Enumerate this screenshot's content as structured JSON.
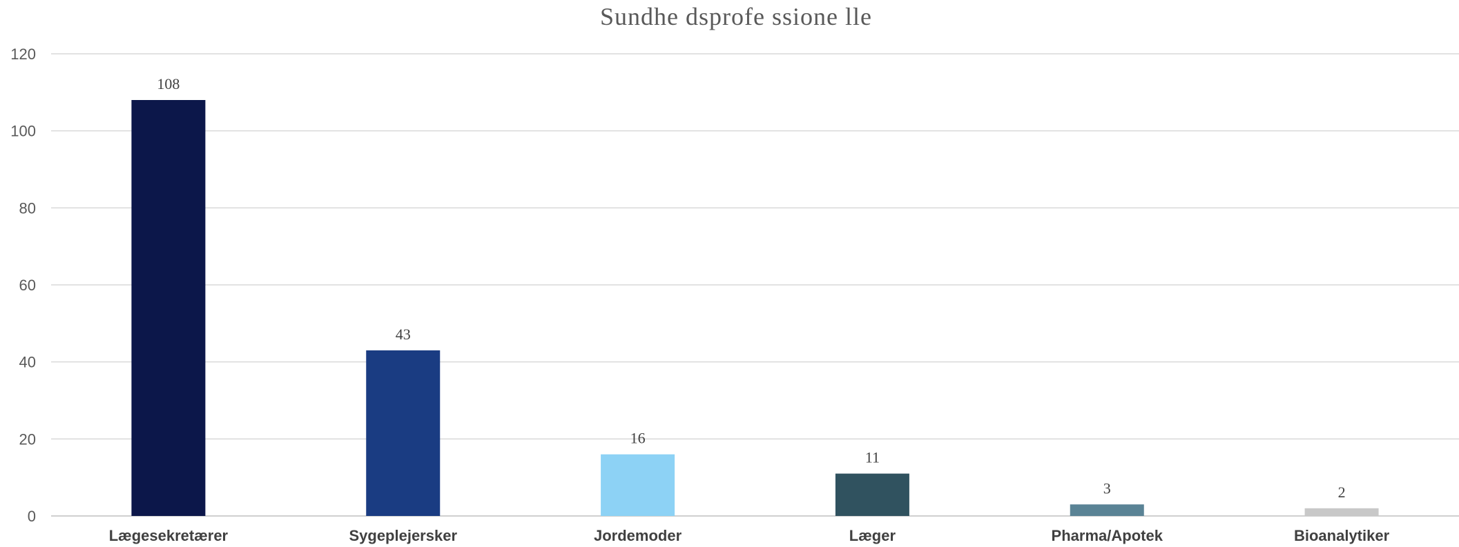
{
  "chart_data": {
    "type": "bar",
    "title": "Sundhe dsprofe ssione lle",
    "xlabel": "",
    "ylabel": "",
    "categories": [
      "Lægesekretærer",
      "Sygeplejersker",
      "Jordemoder",
      "Læger",
      "Pharma/Apotek",
      "Bioanalytiker"
    ],
    "values": [
      108,
      43,
      16,
      11,
      3,
      2
    ],
    "colors": [
      "#0c174a",
      "#1a3c82",
      "#8dd2f5",
      "#30525f",
      "#5a8395",
      "#c8c8c8"
    ],
    "ylim": [
      0,
      120
    ],
    "yticks": [
      0,
      20,
      40,
      60,
      80,
      100,
      120
    ],
    "grid": true,
    "legend": "none",
    "data_labels": true
  }
}
